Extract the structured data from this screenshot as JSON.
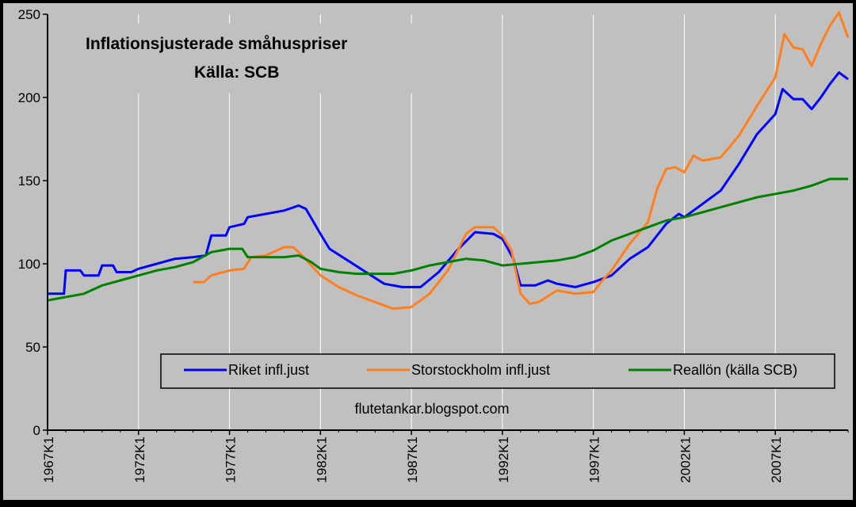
{
  "chart_data": {
    "type": "line",
    "title": "Inflationsjusterade småhuspriser",
    "subtitle": "Källa: SCB",
    "annotation": "flutetankar.blogspot.com",
    "ylim": [
      0,
      250
    ],
    "yticks": [
      0,
      50,
      100,
      150,
      200,
      250
    ],
    "xlim": [
      1967.0,
      2011.0
    ],
    "xticks": [
      "1967K1",
      "1972K1",
      "1977K1",
      "1982K1",
      "1987K1",
      "1992K1",
      "1997K1",
      "2002K1",
      "2007K1"
    ],
    "grid": "vertical",
    "legend_position": "bottom-center",
    "colors": {
      "plot_bg": "#c0c0c0",
      "outer_bg": "#000000"
    },
    "series": [
      {
        "name": "Riket infl.just",
        "color": "#0000ff",
        "points": [
          [
            1967.0,
            82
          ],
          [
            1967.9,
            82
          ],
          [
            1968.0,
            96
          ],
          [
            1968.8,
            96
          ],
          [
            1969.0,
            93
          ],
          [
            1969.8,
            93
          ],
          [
            1970.0,
            99
          ],
          [
            1970.6,
            99
          ],
          [
            1970.8,
            95
          ],
          [
            1971.6,
            95
          ],
          [
            1972.0,
            97
          ],
          [
            1973.0,
            100
          ],
          [
            1974.0,
            103
          ],
          [
            1975.0,
            104
          ],
          [
            1975.7,
            105
          ],
          [
            1976.0,
            117
          ],
          [
            1976.8,
            117
          ],
          [
            1977.0,
            122
          ],
          [
            1977.8,
            124
          ],
          [
            1978.0,
            128
          ],
          [
            1979.0,
            130
          ],
          [
            1980.0,
            132
          ],
          [
            1980.8,
            135
          ],
          [
            1981.2,
            133
          ],
          [
            1982.0,
            118
          ],
          [
            1982.5,
            109
          ],
          [
            1983.5,
            102
          ],
          [
            1984.5,
            95
          ],
          [
            1985.5,
            88
          ],
          [
            1986.5,
            86
          ],
          [
            1987.5,
            86
          ],
          [
            1988.5,
            95
          ],
          [
            1989.5,
            108
          ],
          [
            1990.5,
            119
          ],
          [
            1991.5,
            118
          ],
          [
            1992.0,
            115
          ],
          [
            1992.6,
            103
          ],
          [
            1993.0,
            87
          ],
          [
            1993.8,
            87
          ],
          [
            1994.5,
            90
          ],
          [
            1995.0,
            88
          ],
          [
            1996.0,
            86
          ],
          [
            1997.0,
            89
          ],
          [
            1998.0,
            93
          ],
          [
            1999.0,
            103
          ],
          [
            2000.0,
            110
          ],
          [
            2001.0,
            124
          ],
          [
            2001.7,
            130
          ],
          [
            2002.0,
            128
          ],
          [
            2003.0,
            136
          ],
          [
            2004.0,
            144
          ],
          [
            2005.0,
            160
          ],
          [
            2006.0,
            178
          ],
          [
            2007.0,
            190
          ],
          [
            2007.4,
            205
          ],
          [
            2008.0,
            199
          ],
          [
            2008.5,
            199
          ],
          [
            2009.0,
            193
          ],
          [
            2009.5,
            200
          ],
          [
            2010.0,
            208
          ],
          [
            2010.5,
            215
          ],
          [
            2011.0,
            211
          ]
        ]
      },
      {
        "name": "Storstockholm infl.just",
        "color": "#ff7f1e",
        "points": [
          [
            1975.0,
            89
          ],
          [
            1975.6,
            89
          ],
          [
            1976.0,
            93
          ],
          [
            1977.0,
            96
          ],
          [
            1977.8,
            97
          ],
          [
            1978.2,
            104
          ],
          [
            1979.0,
            105
          ],
          [
            1980.0,
            110
          ],
          [
            1980.5,
            110
          ],
          [
            1981.0,
            105
          ],
          [
            1982.0,
            93
          ],
          [
            1983.0,
            86
          ],
          [
            1984.0,
            81
          ],
          [
            1985.0,
            77
          ],
          [
            1986.0,
            73
          ],
          [
            1987.0,
            74
          ],
          [
            1988.0,
            82
          ],
          [
            1989.0,
            96
          ],
          [
            1990.0,
            118
          ],
          [
            1990.5,
            122
          ],
          [
            1991.5,
            122
          ],
          [
            1992.0,
            117
          ],
          [
            1992.5,
            108
          ],
          [
            1993.0,
            82
          ],
          [
            1993.5,
            76
          ],
          [
            1994.0,
            77
          ],
          [
            1995.0,
            84
          ],
          [
            1996.0,
            82
          ],
          [
            1997.0,
            83
          ],
          [
            1997.5,
            90
          ],
          [
            1998.0,
            96
          ],
          [
            1999.0,
            112
          ],
          [
            2000.0,
            125
          ],
          [
            2000.5,
            145
          ],
          [
            2001.0,
            157
          ],
          [
            2001.5,
            158
          ],
          [
            2002.0,
            155
          ],
          [
            2002.5,
            165
          ],
          [
            2003.0,
            162
          ],
          [
            2004.0,
            164
          ],
          [
            2005.0,
            177
          ],
          [
            2006.0,
            195
          ],
          [
            2007.0,
            212
          ],
          [
            2007.5,
            238
          ],
          [
            2008.0,
            230
          ],
          [
            2008.5,
            229
          ],
          [
            2009.0,
            219
          ],
          [
            2009.5,
            232
          ],
          [
            2010.0,
            243
          ],
          [
            2010.5,
            251
          ],
          [
            2011.0,
            236
          ]
        ]
      },
      {
        "name": "Reallön (källa SCB)",
        "color": "#008000",
        "points": [
          [
            1967.0,
            78
          ],
          [
            1968.0,
            80
          ],
          [
            1969.0,
            82
          ],
          [
            1970.0,
            87
          ],
          [
            1971.0,
            90
          ],
          [
            1972.0,
            93
          ],
          [
            1973.0,
            96
          ],
          [
            1974.0,
            98
          ],
          [
            1975.0,
            101
          ],
          [
            1976.0,
            107
          ],
          [
            1977.0,
            109
          ],
          [
            1977.7,
            109
          ],
          [
            1978.0,
            104
          ],
          [
            1979.0,
            104
          ],
          [
            1980.0,
            104
          ],
          [
            1980.8,
            105
          ],
          [
            1981.5,
            101
          ],
          [
            1982.0,
            97
          ],
          [
            1983.0,
            95
          ],
          [
            1984.0,
            94
          ],
          [
            1985.0,
            94
          ],
          [
            1986.0,
            94
          ],
          [
            1987.0,
            96
          ],
          [
            1988.0,
            99
          ],
          [
            1989.0,
            101
          ],
          [
            1990.0,
            103
          ],
          [
            1991.0,
            102
          ],
          [
            1992.0,
            99
          ],
          [
            1993.0,
            100
          ],
          [
            1994.0,
            101
          ],
          [
            1995.0,
            102
          ],
          [
            1996.0,
            104
          ],
          [
            1997.0,
            108
          ],
          [
            1998.0,
            114
          ],
          [
            1999.0,
            118
          ],
          [
            2000.0,
            122
          ],
          [
            2001.0,
            126
          ],
          [
            2002.0,
            128
          ],
          [
            2003.0,
            131
          ],
          [
            2004.0,
            134
          ],
          [
            2005.0,
            137
          ],
          [
            2006.0,
            140
          ],
          [
            2007.0,
            142
          ],
          [
            2008.0,
            144
          ],
          [
            2009.0,
            147
          ],
          [
            2010.0,
            151
          ],
          [
            2011.0,
            151
          ]
        ]
      }
    ]
  }
}
